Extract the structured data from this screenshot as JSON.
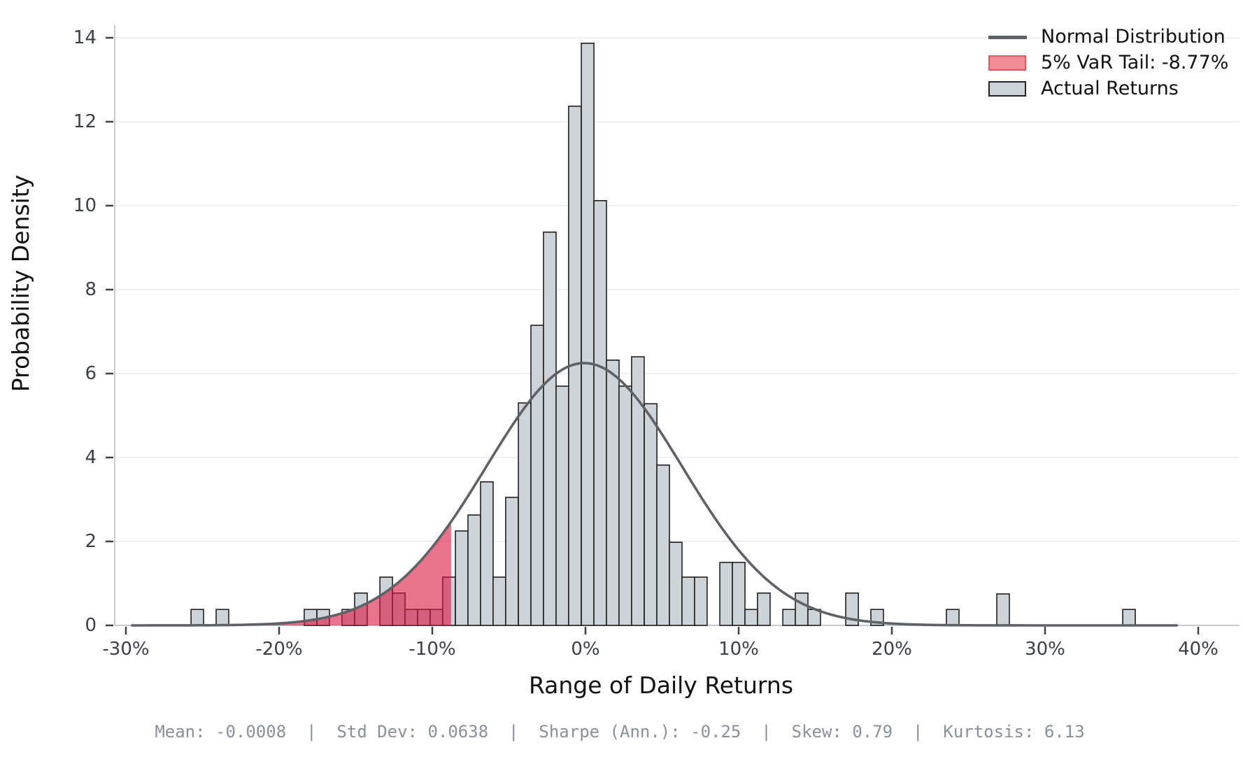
{
  "figure": {
    "x_axis_label": "Range of Daily Returns",
    "y_axis_label": "Probability Density",
    "footer_stats": "Mean: -0.0008  |  Std Dev: 0.0638  |  Sharpe (Ann.): -0.25  |  Skew: 0.79  |  Kurtosis: 6.13"
  },
  "legend": {
    "items": [
      {
        "type": "line",
        "label": "Normal Distribution",
        "color": "#5e6166"
      },
      {
        "type": "patch",
        "label": "5% VaR Tail: -8.77%",
        "fill": "#ef8c95",
        "edge": "#e25765"
      },
      {
        "type": "patch",
        "label": "Actual Returns",
        "fill": "#ccd3d9",
        "edge": "#222222"
      }
    ]
  },
  "colors": {
    "bar_fill": "#ccd3d9",
    "bar_edge": "#1f1f1f",
    "curve": "#5e6166",
    "var_fill": "rgba(220,20,60,0.60)",
    "gridline": "#ebecef",
    "spine": "#c6cbd1",
    "tick_mark": "#3b4046",
    "tick_label": "#3b4046",
    "footer_text": "#8a909a"
  },
  "chart_data": {
    "type": "bar",
    "subtype": "histogram-with-normal-overlay",
    "title": "",
    "xlabel": "Range of Daily Returns",
    "ylabel": "Probability Density",
    "x_unit": "percent_daily_return",
    "xlim": [
      -33,
      43
    ],
    "ylim": [
      0,
      14.8
    ],
    "grid": "horizontal",
    "legend_position": "upper-right",
    "x_ticks_pct": [
      -30,
      -20,
      -10,
      0,
      10,
      20,
      30,
      40
    ],
    "x_ticklabels": [
      "-30%",
      "-20%",
      "-10%",
      "0%",
      "10%",
      "20%",
      "30%",
      "40%"
    ],
    "y_ticks": [
      0,
      2,
      4,
      6,
      8,
      10,
      12,
      14
    ],
    "y_ticklabels": [
      "0",
      "2",
      "4",
      "6",
      "8",
      "10",
      "12",
      "14"
    ],
    "bin_width_pct": 0.822,
    "bars": [
      {
        "x": -25.75,
        "h": 0.38
      },
      {
        "x": -24.11,
        "h": 0.38
      },
      {
        "x": -18.36,
        "h": 0.38
      },
      {
        "x": -17.53,
        "h": 0.38
      },
      {
        "x": -15.89,
        "h": 0.38
      },
      {
        "x": -15.07,
        "h": 0.77
      },
      {
        "x": -13.42,
        "h": 1.15
      },
      {
        "x": -12.6,
        "h": 0.77
      },
      {
        "x": -11.78,
        "h": 0.38
      },
      {
        "x": -10.96,
        "h": 0.38
      },
      {
        "x": -10.14,
        "h": 0.38
      },
      {
        "x": -9.32,
        "h": 1.15
      },
      {
        "x": -8.49,
        "h": 2.25
      },
      {
        "x": -7.67,
        "h": 2.63
      },
      {
        "x": -6.85,
        "h": 3.42
      },
      {
        "x": -6.03,
        "h": 1.15
      },
      {
        "x": -5.21,
        "h": 3.05
      },
      {
        "x": -4.38,
        "h": 5.3
      },
      {
        "x": -3.56,
        "h": 7.15
      },
      {
        "x": -2.74,
        "h": 9.37
      },
      {
        "x": -1.92,
        "h": 5.7
      },
      {
        "x": -1.1,
        "h": 12.37
      },
      {
        "x": -0.27,
        "h": 13.87
      },
      {
        "x": 0.55,
        "h": 10.12
      },
      {
        "x": 1.37,
        "h": 6.32
      },
      {
        "x": 2.19,
        "h": 5.7
      },
      {
        "x": 3.01,
        "h": 6.4
      },
      {
        "x": 3.84,
        "h": 5.28
      },
      {
        "x": 4.66,
        "h": 3.82
      },
      {
        "x": 5.48,
        "h": 1.98
      },
      {
        "x": 6.3,
        "h": 1.15
      },
      {
        "x": 7.12,
        "h": 1.15
      },
      {
        "x": 8.77,
        "h": 1.5
      },
      {
        "x": 9.59,
        "h": 1.5
      },
      {
        "x": 10.41,
        "h": 0.38
      },
      {
        "x": 11.23,
        "h": 0.77
      },
      {
        "x": 12.88,
        "h": 0.38
      },
      {
        "x": 13.7,
        "h": 0.77
      },
      {
        "x": 14.52,
        "h": 0.38
      },
      {
        "x": 16.99,
        "h": 0.77
      },
      {
        "x": 18.63,
        "h": 0.38
      },
      {
        "x": 23.56,
        "h": 0.38
      },
      {
        "x": 26.85,
        "h": 0.75
      },
      {
        "x": 35.07,
        "h": 0.38
      }
    ],
    "normal_curve": {
      "mean_pct": -0.08,
      "std_pct": 6.38,
      "peak_density": 6.25,
      "x_start_pct": -29.6,
      "x_end_pct": 38.7
    },
    "var_threshold_pct": -8.77,
    "var_confidence": "5%",
    "stats": {
      "mean": "-0.0008",
      "std_dev": "0.0638",
      "sharpe_ann": "-0.25",
      "skew": "0.79",
      "kurtosis": "6.13"
    }
  }
}
